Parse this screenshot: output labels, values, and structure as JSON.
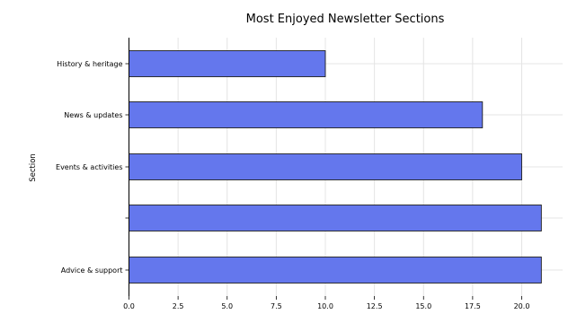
{
  "chart_data": {
    "type": "bar",
    "orientation": "horizontal",
    "title": "Most Enjoyed Newsletter Sections",
    "xlabel": "",
    "ylabel": "Section",
    "categories": [
      "History & heritage",
      "News & updates",
      "Events & activities",
      "",
      "Advice & support"
    ],
    "values": [
      10,
      18,
      20,
      21,
      21
    ],
    "xlim": [
      0,
      22
    ],
    "xticks": [
      0,
      2.5,
      5,
      7.5,
      10,
      12.5,
      15,
      17.5,
      20
    ],
    "xtick_labels": [
      "0.0",
      "2.5",
      "5.0",
      "7.5",
      "10.0",
      "12.5",
      "15.0",
      "17.5",
      "20.0"
    ],
    "grid": true,
    "legend": "none",
    "colors": {
      "bar": "#6477ed",
      "bar_edge": "#1f1f1f",
      "grid": "#e4e4e4"
    }
  }
}
